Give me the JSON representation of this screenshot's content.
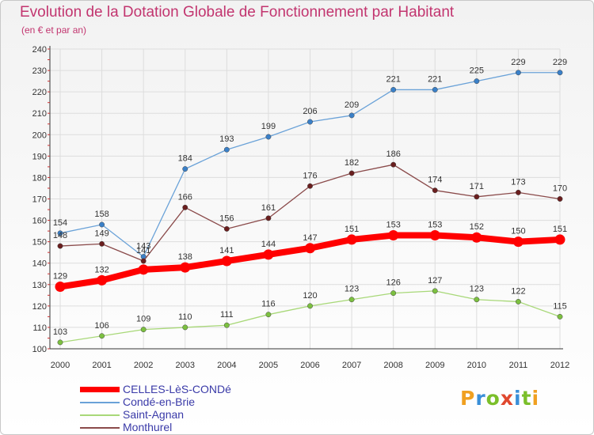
{
  "title": "Evolution de la Dotation Globale de Fonctionnement par Habitant",
  "subtitle": "(en € et par an)",
  "logo": {
    "letters": [
      "P",
      "r",
      "o",
      "x",
      "i",
      "t",
      "i"
    ],
    "colors": [
      "#f0a020",
      "#3a8fd8",
      "#7bbf2a",
      "#e0482e",
      "#3a8fd8",
      "#7bbf2a",
      "#f0a020"
    ]
  },
  "chart_data": {
    "type": "line",
    "title": "Evolution de la Dotation Globale de Fonctionnement par Habitant",
    "subtitle": "(en € et par an)",
    "xlabel": "",
    "ylabel": "",
    "x": [
      "2000",
      "2001",
      "2002",
      "2003",
      "2004",
      "2005",
      "2006",
      "2007",
      "2008",
      "2009",
      "2010",
      "2011",
      "2012"
    ],
    "ylim": [
      100,
      240
    ],
    "yticks": [
      100,
      110,
      120,
      130,
      140,
      150,
      160,
      170,
      180,
      190,
      200,
      210,
      220,
      230,
      240
    ],
    "grid": true,
    "legend_position": "bottom-left",
    "series": [
      {
        "name": "CELLES-LèS-CONDé",
        "color": "#ff0000",
        "emphasis": "thick",
        "values": [
          129,
          132,
          137,
          138,
          141,
          144,
          147,
          151,
          153,
          153,
          152,
          150,
          151
        ],
        "labels": [
          "129",
          "132",
          "",
          "138",
          "141",
          "144",
          "147",
          "151",
          "153",
          "153",
          "152",
          "150",
          "151"
        ]
      },
      {
        "name": "Condé-en-Brie",
        "color": "#6aa2d8",
        "point_color": "#3a80c8",
        "values": [
          154,
          158,
          143,
          184,
          193,
          199,
          206,
          209,
          221,
          221,
          225,
          229,
          229
        ],
        "labels": [
          "154",
          "158",
          "143",
          "184",
          "193",
          "199",
          "206",
          "209",
          "221",
          "221",
          "225",
          "229",
          "229"
        ]
      },
      {
        "name": "Saint-Agnan",
        "color": "#a8d878",
        "point_color": "#7cc040",
        "values": [
          103,
          106,
          109,
          110,
          111,
          116,
          120,
          123,
          126,
          127,
          123,
          122,
          115
        ],
        "labels": [
          "103",
          "106",
          "109",
          "110",
          "111",
          "116",
          "120",
          "123",
          "126",
          "127",
          "123",
          "122",
          "115"
        ]
      },
      {
        "name": "Monthurel",
        "color": "#8a4a4a",
        "point_color": "#6a1e1e",
        "values": [
          148,
          149,
          141,
          166,
          156,
          161,
          176,
          182,
          186,
          174,
          171,
          173,
          170
        ],
        "labels": [
          "148",
          "149",
          "141",
          "166",
          "156",
          "161",
          "176",
          "182",
          "186",
          "174",
          "171",
          "173",
          "170"
        ]
      }
    ]
  },
  "legend": [
    {
      "label": "CELLES-LèS-CONDé",
      "color": "#ff0000"
    },
    {
      "label": "Condé-en-Brie",
      "color": "#6aa2d8"
    },
    {
      "label": "Saint-Agnan",
      "color": "#a8d878"
    },
    {
      "label": "Monthurel",
      "color": "#8a4a4a"
    }
  ]
}
